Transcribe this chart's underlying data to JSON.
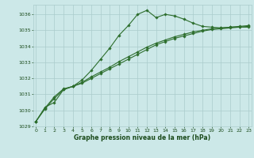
{
  "title": "Graphe pression niveau de la mer (hPa)",
  "x": [
    0,
    1,
    2,
    3,
    4,
    5,
    6,
    7,
    8,
    9,
    10,
    11,
    12,
    13,
    14,
    15,
    16,
    17,
    18,
    19,
    20,
    21,
    22,
    23
  ],
  "series1": [
    1029.3,
    1030.2,
    1030.5,
    1031.3,
    1031.5,
    1031.9,
    1032.5,
    1033.2,
    1033.9,
    1034.7,
    1035.3,
    1036.0,
    1036.25,
    1035.8,
    1036.0,
    1035.9,
    1035.7,
    1035.45,
    1035.25,
    1035.2,
    1035.15,
    1035.2,
    1035.2,
    1035.2
  ],
  "series2": [
    1029.3,
    1030.15,
    1030.85,
    1031.35,
    1031.5,
    1031.75,
    1032.1,
    1032.4,
    1032.7,
    1033.05,
    1033.35,
    1033.65,
    1033.95,
    1034.2,
    1034.4,
    1034.6,
    1034.75,
    1034.9,
    1035.0,
    1035.1,
    1035.15,
    1035.2,
    1035.25,
    1035.3
  ],
  "series3": [
    1029.3,
    1030.1,
    1030.75,
    1031.3,
    1031.5,
    1031.7,
    1032.0,
    1032.3,
    1032.6,
    1032.9,
    1033.2,
    1033.5,
    1033.8,
    1034.1,
    1034.3,
    1034.5,
    1034.65,
    1034.8,
    1034.95,
    1035.05,
    1035.1,
    1035.15,
    1035.2,
    1035.25
  ],
  "line_color": "#2d6e2d",
  "bg_color": "#cce8e8",
  "grid_color": "#aacccc",
  "title_color": "#1a4a1a",
  "ylim": [
    1029,
    1036.6
  ],
  "yticks": [
    1029,
    1030,
    1031,
    1032,
    1033,
    1034,
    1035,
    1036
  ],
  "xticks": [
    0,
    1,
    2,
    3,
    4,
    5,
    6,
    7,
    8,
    9,
    10,
    11,
    12,
    13,
    14,
    15,
    16,
    17,
    18,
    19,
    20,
    21,
    22,
    23
  ]
}
